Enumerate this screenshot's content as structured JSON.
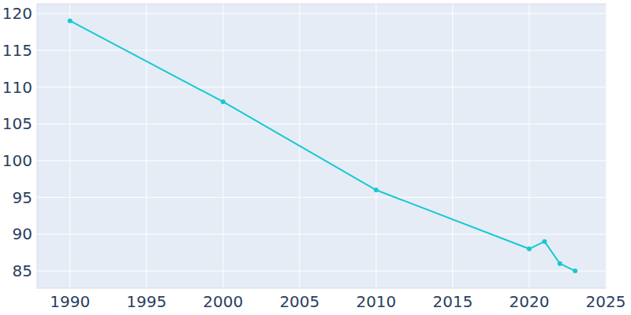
{
  "chart_data": {
    "type": "line",
    "x": [
      1990,
      2000,
      2010,
      2020,
      2021,
      2022,
      2023
    ],
    "values": [
      119,
      108,
      96,
      88,
      89,
      86,
      85
    ],
    "color": "#17c9d1",
    "marker": "circle",
    "xlim": [
      1987.85,
      2025
    ],
    "ylim": [
      82.65,
      121.3
    ],
    "xticks": [
      1990,
      1995,
      2000,
      2005,
      2010,
      2015,
      2020,
      2025
    ],
    "yticks": [
      85,
      90,
      95,
      100,
      105,
      110,
      115,
      120
    ],
    "grid": true
  }
}
